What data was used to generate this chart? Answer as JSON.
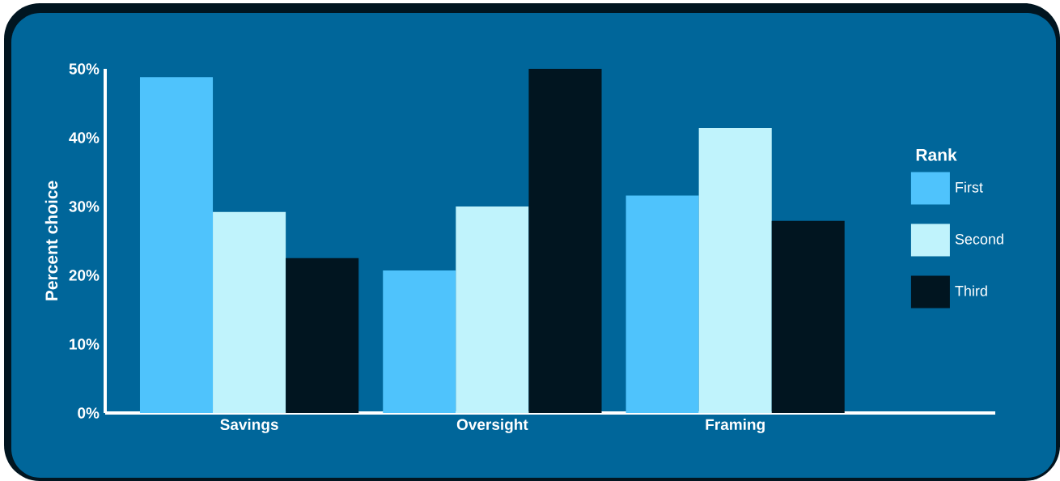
{
  "chart_data": {
    "type": "bar",
    "ylabel": "Percent choice",
    "legend_title": "Rank",
    "categories": [
      "Savings",
      "Oversight",
      "Framing"
    ],
    "series": [
      {
        "name": "First",
        "color": "#4fc3fc",
        "values": [
          48.8,
          20.7,
          31.6
        ]
      },
      {
        "name": "Second",
        "color": "#c0f3fc",
        "values": [
          29.2,
          30.0,
          41.4
        ]
      },
      {
        "name": "Third",
        "color": "#011520",
        "values": [
          22.5,
          50.0,
          27.9
        ]
      }
    ],
    "ylim": [
      0,
      50
    ],
    "yticks": [
      {
        "value": 0,
        "label": "0%"
      },
      {
        "value": 10,
        "label": "10%"
      },
      {
        "value": 20,
        "label": "20%"
      },
      {
        "value": 30,
        "label": "30%"
      },
      {
        "value": 40,
        "label": "40%"
      },
      {
        "value": 50,
        "label": "50%"
      }
    ],
    "grid": false,
    "legend": "right"
  }
}
